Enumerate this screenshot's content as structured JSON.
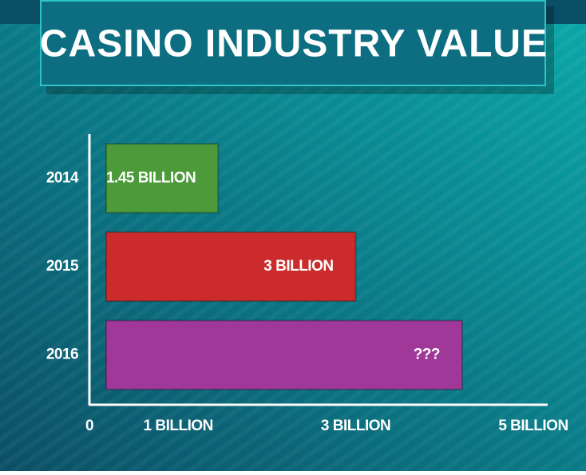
{
  "chart_data": {
    "type": "bar",
    "orientation": "horizontal",
    "title": "CASINO INDUSTRY VALUE",
    "categories": [
      "2014",
      "2015",
      "2016"
    ],
    "values": [
      1.45,
      3,
      4.2
    ],
    "value_labels": [
      "1.45 BILLION",
      "3 BILLION",
      "???"
    ],
    "colors": [
      "#4c9a3a",
      "#cc2b2b",
      "#a0389a"
    ],
    "xlim": [
      0,
      5
    ],
    "xticks": [
      0,
      {
        "value": 1,
        "label": "1 BILLION"
      },
      {
        "value": 3,
        "label": "3 BILLION"
      },
      {
        "value": 5,
        "label": "5 BILLION"
      }
    ]
  }
}
